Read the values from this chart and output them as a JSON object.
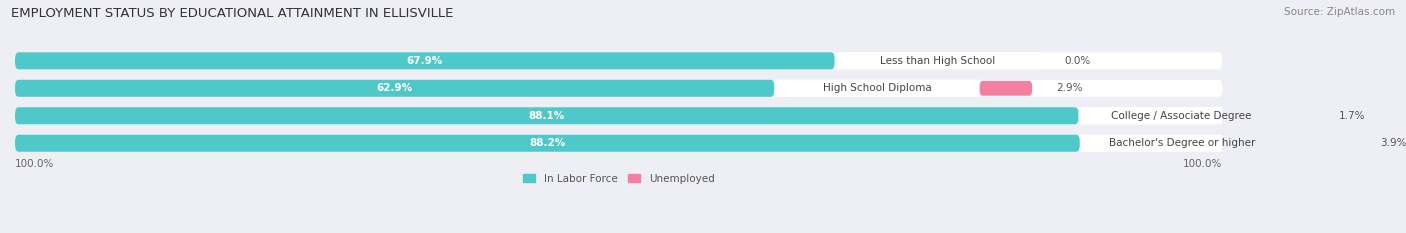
{
  "title": "EMPLOYMENT STATUS BY EDUCATIONAL ATTAINMENT IN ELLISVILLE",
  "source": "Source: ZipAtlas.com",
  "categories": [
    "Less than High School",
    "High School Diploma",
    "College / Associate Degree",
    "Bachelor's Degree or higher"
  ],
  "labor_force_pct": [
    67.9,
    62.9,
    88.1,
    88.2
  ],
  "unemployed_pct": [
    0.0,
    2.9,
    1.7,
    3.9
  ],
  "labor_force_color": "#4EC8C8",
  "unemployed_color": "#F47FA0",
  "background_color": "#EEEEF5",
  "bar_bg_color": "#DCDCE8",
  "bar_height": 0.62,
  "total_width": 100.0,
  "x_left_label": "100.0%",
  "x_right_label": "100.0%",
  "title_fontsize": 9.5,
  "source_fontsize": 7.5,
  "label_fontsize": 7.5,
  "cat_fontsize": 7.5,
  "legend_fontsize": 7.5,
  "tick_fontsize": 7.5
}
